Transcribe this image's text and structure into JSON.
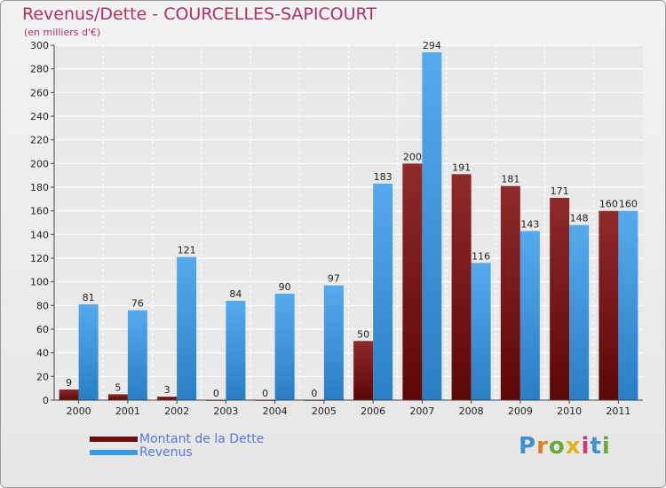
{
  "title": "Revenus/Dette - COURCELLES-SAPICOURT",
  "subtitle": "(en milliers d'€)",
  "logo": "Proxiti",
  "chart_data": {
    "type": "bar",
    "title": "Revenus/Dette - COURCELLES-SAPICOURT",
    "ylabel": "(en milliers d'€)",
    "ylim": [
      0,
      300
    ],
    "yticks": [
      0,
      20,
      40,
      60,
      80,
      100,
      120,
      140,
      160,
      180,
      200,
      220,
      240,
      260,
      280,
      300
    ],
    "grid": true,
    "legend": "bottom-left",
    "categories": [
      "2000",
      "2001",
      "2002",
      "2003",
      "2004",
      "2005",
      "2006",
      "2007",
      "2008",
      "2009",
      "2010",
      "2011"
    ],
    "series": [
      {
        "name": "Montant de la Dette",
        "color": "#8b1a1a",
        "values": [
          9,
          5,
          3,
          0,
          0,
          0,
          50,
          200,
          191,
          181,
          171,
          160
        ]
      },
      {
        "name": "Revenus",
        "color": "#3c9be6",
        "values": [
          81,
          76,
          121,
          84,
          90,
          97,
          183,
          294,
          116,
          143,
          148,
          160
        ]
      }
    ]
  }
}
